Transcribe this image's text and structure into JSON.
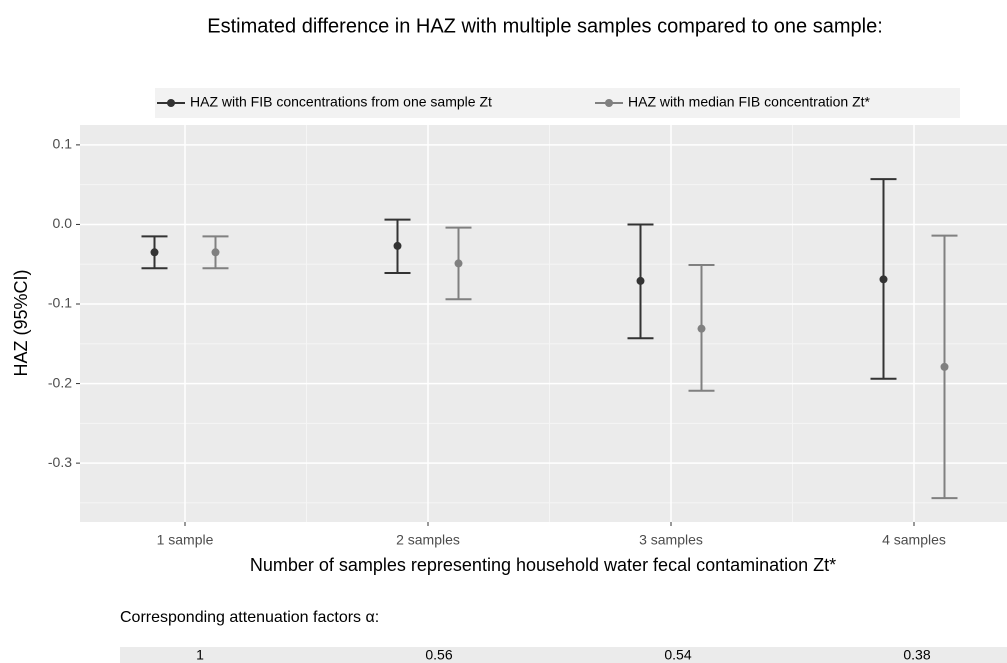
{
  "chart_data": {
    "type": "errorbar",
    "title": "Estimated difference in HAZ with multiple samples compared to one sample:",
    "x_label": "Number of samples representing household water fecal contamination Zt*",
    "y_label": "HAZ (95%CI)",
    "categories": [
      "1 sample",
      "2 samples",
      "3 samples",
      "4 samples"
    ],
    "series": [
      {
        "name": "HAZ with FIB concentrations from one sample Zt",
        "color": "#333333",
        "values": [
          -0.035,
          -0.027,
          -0.071,
          -0.069
        ],
        "lower": [
          -0.055,
          -0.061,
          -0.143,
          -0.194
        ],
        "upper": [
          -0.015,
          0.006,
          0.0,
          0.057
        ]
      },
      {
        "name": "HAZ with median FIB concentration Zt*",
        "color": "#808080",
        "values": [
          -0.035,
          -0.049,
          -0.131,
          -0.179
        ],
        "lower": [
          -0.055,
          -0.094,
          -0.209,
          -0.344
        ],
        "upper": [
          -0.015,
          -0.004,
          -0.051,
          -0.014
        ]
      }
    ],
    "ylim": [
      -0.374,
      0.125
    ],
    "yticks": [
      {
        "value": -0.3,
        "label": "-0.3"
      },
      {
        "value": -0.2,
        "label": "-0.2"
      },
      {
        "value": -0.1,
        "label": "-0.1"
      },
      {
        "value": 0,
        "label": "0.0"
      },
      {
        "value": 0.1,
        "label": "0.1"
      }
    ],
    "grid": true,
    "legend": "top",
    "attenuation_title": "Corresponding attenuation factors α:",
    "attenuation_factors": [
      1,
      0.56,
      0.54,
      0.38
    ]
  }
}
